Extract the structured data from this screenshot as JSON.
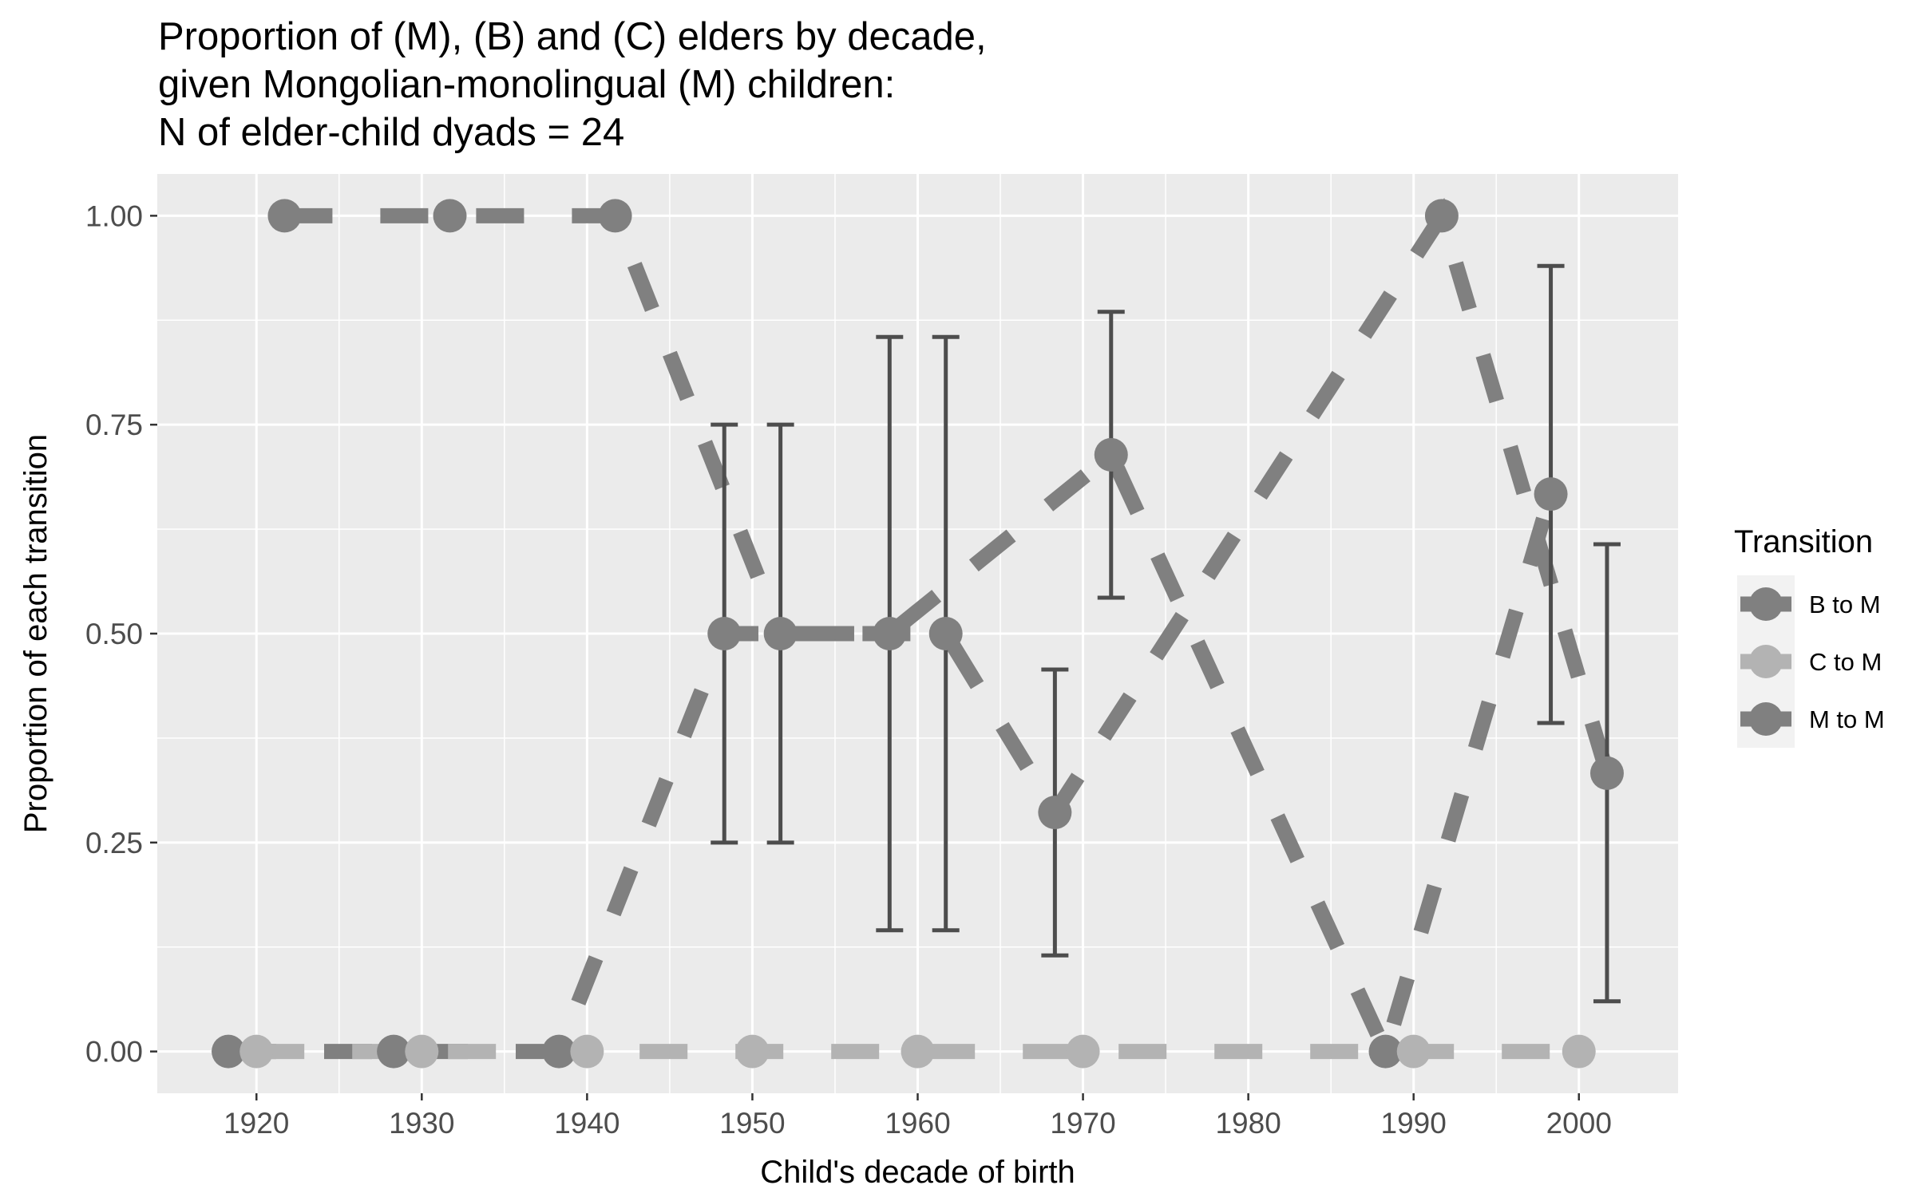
{
  "chart_data": {
    "type": "line",
    "title_lines": [
      "Proportion of (M), (B) and (C) elders by decade,",
      "given Mongolian-monolingual (M) children:",
      "N of elder-child dyads = 24"
    ],
    "xlabel": "Child's decade of birth",
    "ylabel": "Proportion of each transition",
    "xlim": [
      1914,
      2006
    ],
    "ylim": [
      -0.05,
      1.05
    ],
    "x_ticks": [
      1920,
      1930,
      1940,
      1950,
      1960,
      1970,
      1980,
      1990,
      2000
    ],
    "x_tick_labels": [
      "1920",
      "1930",
      "1940",
      "1950",
      "1960",
      "1970",
      "1980",
      "1990",
      "2000"
    ],
    "y_ticks": [
      0,
      0.25,
      0.5,
      0.75,
      1
    ],
    "y_tick_labels": [
      "0.00",
      "0.25",
      "0.50",
      "0.75",
      "1.00"
    ],
    "grid": true,
    "legend_title": "Transition",
    "legend_position": "right",
    "series": [
      {
        "name": "B to M",
        "color": "#808080",
        "points": [
          {
            "x": 1918.3,
            "y": 0
          },
          {
            "x": 1928.3,
            "y": 0
          },
          {
            "x": 1938.3,
            "y": 0
          },
          {
            "x": 1948.3,
            "y": 0.5,
            "lower": 0.25,
            "upper": 0.75
          },
          {
            "x": 1958.3,
            "y": 0.5,
            "lower": 0.145,
            "upper": 0.855
          },
          {
            "x": 1971.7,
            "y": 0.714,
            "lower": 0.543,
            "upper": 0.885
          },
          {
            "x": 1988.3,
            "y": 0
          },
          {
            "x": 1998.3,
            "y": 0.667,
            "lower": 0.393,
            "upper": 0.94
          }
        ]
      },
      {
        "name": "C to M",
        "color": "#b3b3b3",
        "points": [
          {
            "x": 1920,
            "y": 0
          },
          {
            "x": 1930,
            "y": 0
          },
          {
            "x": 1940,
            "y": 0
          },
          {
            "x": 1950,
            "y": 0
          },
          {
            "x": 1960,
            "y": 0
          },
          {
            "x": 1970,
            "y": 0
          },
          {
            "x": 1990,
            "y": 0
          },
          {
            "x": 2000,
            "y": 0
          }
        ]
      },
      {
        "name": "M to M",
        "color": "#808080",
        "points": [
          {
            "x": 1921.7,
            "y": 1
          },
          {
            "x": 1931.7,
            "y": 1
          },
          {
            "x": 1941.7,
            "y": 1
          },
          {
            "x": 1951.7,
            "y": 0.5,
            "lower": 0.25,
            "upper": 0.75
          },
          {
            "x": 1961.7,
            "y": 0.5,
            "lower": 0.145,
            "upper": 0.855
          },
          {
            "x": 1968.3,
            "y": 0.286,
            "lower": 0.115,
            "upper": 0.457
          },
          {
            "x": 1991.7,
            "y": 1
          },
          {
            "x": 2001.7,
            "y": 0.333,
            "lower": 0.06,
            "upper": 0.607
          }
        ]
      }
    ]
  }
}
